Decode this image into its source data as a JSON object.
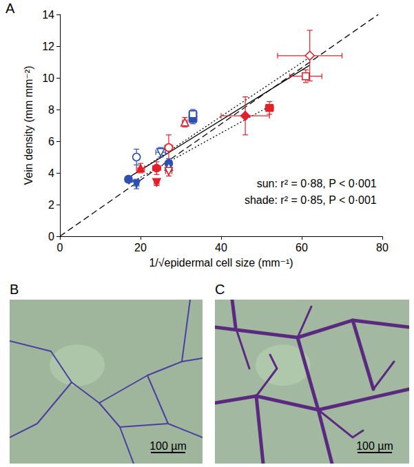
{
  "chart_data": {
    "type": "scatter",
    "panel_label": "A",
    "x_label": "1/√epidermal cell size (mm⁻¹)",
    "y_label": "Vein density (mm mm⁻²)",
    "xlim": [
      0,
      80
    ],
    "xticks": [
      0,
      20,
      40,
      60,
      80
    ],
    "ylim": [
      0,
      14
    ],
    "yticks": [
      0,
      2,
      4,
      6,
      8,
      10,
      12,
      14
    ],
    "annotations": [
      "sun: r² = 0·88, P < 0·001",
      "shade: r² = 0·85, P < 0·001"
    ],
    "series": [
      {
        "type": "line",
        "line_style": "dashed",
        "color": "#000000",
        "x": [
          0,
          79
        ],
        "values": [
          0,
          14
        ]
      },
      {
        "type": "line",
        "line_style": "solid",
        "color": "#000000",
        "x": [
          17,
          62
        ],
        "values": [
          3.7,
          10.8
        ]
      },
      {
        "type": "line",
        "line_style": "dotted",
        "color": "#000000",
        "x": [
          17,
          52
        ],
        "values": [
          3.3,
          8.2
        ]
      },
      {
        "type": "line",
        "line_style": "dotted",
        "color": "#000000",
        "x": [
          19,
          62
        ],
        "values": [
          4.0,
          11.3
        ]
      },
      {
        "type": "scatter",
        "color": "#2f4fb0",
        "marker": "circle",
        "x": [
          17
        ],
        "values": [
          3.6
        ],
        "x_err": [
          0.8
        ],
        "y_err": [
          0.2
        ]
      },
      {
        "type": "scatter",
        "color": "#2f4fb0",
        "marker": "triangle-down",
        "x": [
          19
        ],
        "values": [
          3.3
        ],
        "x_err": [
          0.6
        ],
        "y_err": [
          0.3
        ]
      },
      {
        "type": "scatter",
        "color": "#2f4fb0",
        "marker": "circle",
        "x": [
          27
        ],
        "values": [
          4.6
        ],
        "x_err": [
          0.6
        ],
        "y_err": [
          0.3
        ]
      },
      {
        "type": "scatter",
        "color": "#2f4fb0",
        "marker": "square",
        "x": [
          33
        ],
        "values": [
          7.4
        ],
        "x_err": [
          1.0
        ],
        "y_err": [
          0.3
        ]
      },
      {
        "type": "scatter",
        "color": "#2f4fb0",
        "marker": "circle-open",
        "x": [
          19
        ],
        "values": [
          5.0
        ],
        "x_err": [
          0.6
        ],
        "y_err": [
          0.5
        ]
      },
      {
        "type": "scatter",
        "color": "#2f4fb0",
        "marker": "triangle-down-open",
        "x": [
          25
        ],
        "values": [
          5.3
        ],
        "x_err": [
          1.2
        ],
        "y_err": [
          0.3
        ]
      },
      {
        "type": "scatter",
        "color": "#2f4fb0",
        "marker": "triangle-open",
        "x": [
          27
        ],
        "values": [
          4.4
        ],
        "x_err": [
          0.6
        ],
        "y_err": [
          0.3
        ]
      },
      {
        "type": "scatter",
        "color": "#2f4fb0",
        "marker": "square-open",
        "x": [
          33
        ],
        "values": [
          7.7
        ],
        "x_err": [
          1.0
        ],
        "y_err": [
          0.3
        ]
      },
      {
        "type": "scatter",
        "color": "#e3202a",
        "marker": "triangle",
        "x": [
          20
        ],
        "values": [
          4.3
        ],
        "x_err": [
          1.0
        ],
        "y_err": [
          0.3
        ]
      },
      {
        "type": "scatter",
        "color": "#e3202a",
        "marker": "circle",
        "x": [
          24
        ],
        "values": [
          4.3
        ],
        "x_err": [
          1.0
        ],
        "y_err": [
          0.4
        ]
      },
      {
        "type": "scatter",
        "color": "#e3202a",
        "marker": "triangle-down",
        "x": [
          24
        ],
        "values": [
          3.4
        ],
        "x_err": [
          0.6
        ],
        "y_err": [
          0.2
        ]
      },
      {
        "type": "scatter",
        "color": "#e3202a",
        "marker": "diamond",
        "x": [
          46
        ],
        "values": [
          7.6
        ],
        "x_err": [
          6
        ],
        "y_err": [
          1.2
        ]
      },
      {
        "type": "scatter",
        "color": "#e3202a",
        "marker": "square",
        "x": [
          52
        ],
        "values": [
          8.1
        ],
        "x_err": [
          1.0
        ],
        "y_err": [
          0.4
        ]
      },
      {
        "type": "scatter",
        "color": "#e3202a",
        "marker": "circle-open",
        "x": [
          27
        ],
        "values": [
          5.6
        ],
        "x_err": [
          1.0
        ],
        "y_err": [
          0.8
        ]
      },
      {
        "type": "scatter",
        "color": "#e3202a",
        "marker": "triangle-open",
        "x": [
          31
        ],
        "values": [
          7.2
        ],
        "x_err": [
          0.6
        ],
        "y_err": [
          0.3
        ]
      },
      {
        "type": "scatter",
        "color": "#e3202a",
        "marker": "triangle-down-open",
        "x": [
          27
        ],
        "values": [
          4.1
        ],
        "x_err": [
          0.8
        ],
        "y_err": [
          0.3
        ]
      },
      {
        "type": "scatter",
        "color": "#e3202a",
        "marker": "diamond-open",
        "x": [
          62
        ],
        "values": [
          11.4
        ],
        "x_err": [
          8
        ],
        "y_err": [
          1.6
        ]
      },
      {
        "type": "scatter",
        "color": "#e3202a",
        "marker": "square-open",
        "x": [
          61
        ],
        "values": [
          10.1
        ],
        "x_err": [
          4
        ],
        "y_err": [
          0.4
        ]
      }
    ]
  },
  "panels": [
    {
      "label": "B",
      "scale_bar": "100 µm"
    },
    {
      "label": "C",
      "scale_bar": "100 µm"
    }
  ]
}
